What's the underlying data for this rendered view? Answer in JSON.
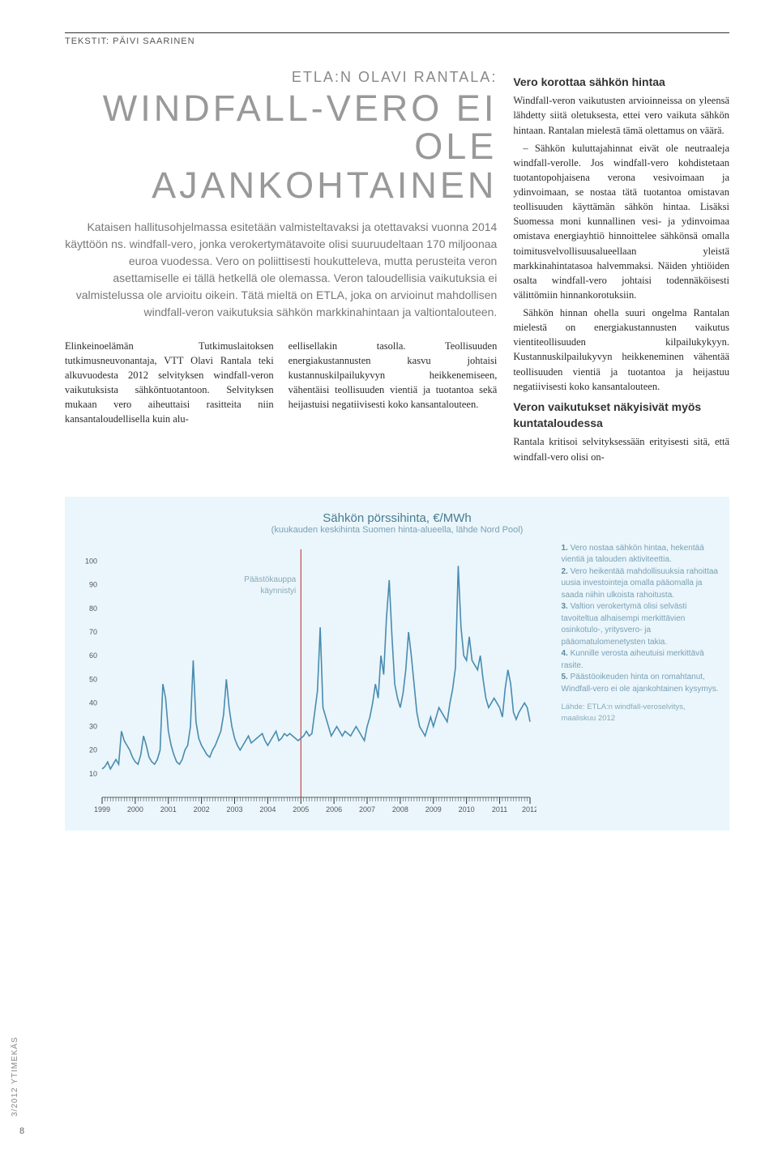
{
  "byline_prefix": "TEKSTIT: ",
  "byline_author": "PÄIVI SAARINEN",
  "kicker": "ETLA:N OLAVI RANTALA:",
  "headline_l1": "WINDFALL-VERO EI",
  "headline_l2": "OLE AJANKOHTAINEN",
  "lede": "Kataisen hallitusohjelmassa esitetään valmisteltavaksi ja otettavaksi vuonna 2014 käyttöön ns. windfall-vero, jonka verokertymätavoite olisi suuruudeltaan 170 miljoonaa euroa vuodessa. Vero on poliittisesti houkutteleva, mutta perusteita veron asettamiselle ei tällä hetkellä ole olemassa. Veron taloudellisia vaikutuksia ei valmistelussa ole arvioitu oikein. Tätä mieltä on ETLA, joka on arvioinut mahdollisen windfall-veron vaikutuksia sähkön markkinahintaan ja valtiontalouteen.",
  "col_a": "Elinkeinoelämän Tutkimuslaitoksen tutkimusneuvonantaja, VTT Olavi Rantala teki alkuvuodesta 2012 selvityksen windfall-veron vaikutuksista sähköntuotantoon. Selvityksen mukaan vero aiheuttaisi rasitteita niin kansantaloudellisella kuin alu-",
  "col_b": "eellisellakin tasolla. Teollisuuden energiakustannusten kasvu johtaisi kustannuskilpailukyvyn heikkenemiseen, vähentäisi teollisuuden vientiä ja tuotantoa sekä heijastuisi negatiivisesti koko kansantalouteen.",
  "right": {
    "sub1": "Vero korottaa sähkön hintaa",
    "p1": "Windfall-veron vaikutusten arvioinneissa on yleensä lähdetty siitä oletuksesta, ettei vero vaikuta sähkön hintaan. Rantalan mielestä tämä olettamus on väärä.",
    "p2": "– Sähkön kuluttajahinnat eivät ole neutraaleja windfall-verolle. Jos windfall-vero kohdistetaan tuotantopohjaisena verona vesivoimaan ja ydinvoimaan, se nostaa tätä tuotantoa omistavan teollisuuden käyttämän sähkön hintaa. Lisäksi Suomessa moni kunnallinen vesi- ja ydinvoimaa omistava energiayhtiö hinnoittelee sähkönsä omalla toimitusvelvollisuusalueellaan yleistä markkinahintatasoa halvemmaksi. Näiden yhtiöiden osalta windfall-vero johtaisi todennäköisesti välittömiin hinnankorotuksiin.",
    "p3": "Sähkön hinnan ohella suuri ongelma Rantalan mielestä on energiakustannusten vaikutus vientiteollisuuden kilpailukykyyn. Kustannuskilpailukyvyn heikkeneminen vähentää teollisuuden vientiä ja tuotantoa ja heijastuu negatiivisesti koko kansantalouteen.",
    "sub2": "Veron vaikutukset näkyisivät myös kuntataloudessa",
    "p4": "Rantala kritisoi selvityksessään erityisesti sitä, että windfall-vero olisi on-"
  },
  "chart": {
    "type": "line",
    "title": "Sähkön pörssihinta, €/MWh",
    "subtitle": "(kuukauden keskihinta Suomen hinta-alueella, lähde Nord Pool)",
    "annotation_l1": "Päästökauppa",
    "annotation_l2": "käynnistyi",
    "x_labels": [
      "1999",
      "2000",
      "2001",
      "2002",
      "2003",
      "2004",
      "2005",
      "2006",
      "2007",
      "2008",
      "2009",
      "2010",
      "2011",
      "2012"
    ],
    "y_ticks": [
      10,
      20,
      30,
      40,
      50,
      60,
      70,
      80,
      90,
      100
    ],
    "ylim": [
      0,
      105
    ],
    "line_color": "#4a8bb0",
    "marker_line_color": "#c1232b",
    "tick_color": "#333333",
    "grid_bg": "#eaf6fb",
    "series": [
      12,
      13,
      15,
      12,
      14,
      16,
      14,
      28,
      24,
      22,
      20,
      17,
      15,
      14,
      18,
      26,
      22,
      17,
      15,
      14,
      16,
      20,
      48,
      42,
      28,
      22,
      18,
      15,
      14,
      16,
      20,
      22,
      30,
      58,
      32,
      25,
      22,
      20,
      18,
      17,
      20,
      22,
      25,
      28,
      35,
      50,
      38,
      30,
      25,
      22,
      20,
      22,
      24,
      26,
      23,
      24,
      25,
      26,
      27,
      24,
      22,
      24,
      26,
      28,
      24,
      25,
      27,
      26,
      27,
      26,
      25,
      24,
      25,
      26,
      28,
      26,
      27,
      36,
      45,
      72,
      38,
      34,
      30,
      26,
      28,
      30,
      28,
      26,
      28,
      27,
      26,
      28,
      30,
      28,
      26,
      24,
      30,
      34,
      40,
      48,
      42,
      60,
      52,
      76,
      92,
      68,
      48,
      42,
      38,
      44,
      54,
      70,
      60,
      48,
      36,
      30,
      28,
      26,
      30,
      34,
      30,
      34,
      38,
      36,
      34,
      32,
      40,
      46,
      55,
      98,
      72,
      60,
      58,
      68,
      58,
      56,
      54,
      60,
      50,
      42,
      38,
      40,
      42,
      40,
      38,
      34,
      46,
      54,
      48,
      36,
      33,
      36,
      38,
      40,
      38,
      32
    ],
    "marker_x_index": 72,
    "notes": [
      {
        "n": "1.",
        "t": "Vero nostaa sähkön hintaa, hekentää vientiä ja talouden aktiviteettia."
      },
      {
        "n": "2.",
        "t": "Vero heikentää mahdollisuuksia rahoittaa uusia investointeja omalla pääomalla ja saada niihin ulkoista rahoitusta."
      },
      {
        "n": "3.",
        "t": "Valtion verokertymä olisi selvästi tavoiteltua alhaisempi merkittävien osinkotulo-, yritysvero- ja pääomatulomenetys­ten takia."
      },
      {
        "n": "4.",
        "t": "Kunnille verosta aiheutuisi merkittävä rasite."
      },
      {
        "n": "5.",
        "t": "Päästöoikeuden hinta on romahtanut, Windfall-vero ei ole ajankohtainen kysymys."
      }
    ],
    "source": "Lähde: ETLA:n windfall-veroselvitys, maaliskuu 2012"
  },
  "spine": "3/2012 YTIMEKÄS",
  "page": "8"
}
